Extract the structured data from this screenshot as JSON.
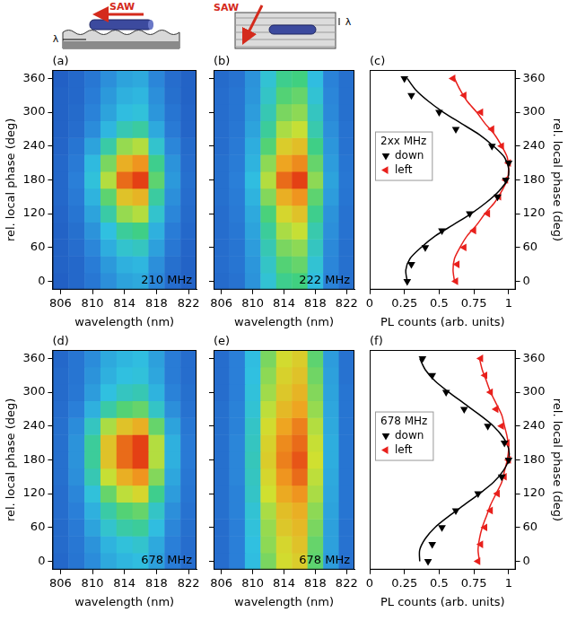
{
  "schematics": [
    {
      "arrow_label": "SAW",
      "period_label": "λ"
    },
    {
      "arrow_label": "SAW",
      "period_label": "λ"
    }
  ],
  "chart_data": [
    {
      "type": "heatmap",
      "panel_label": "(a)",
      "annotation": "210 MHz",
      "x_label": "wavelength (nm)",
      "y_label": "rel. local phase (deg)",
      "x": [
        806,
        808,
        810,
        812,
        814,
        816,
        818,
        820,
        822
      ],
      "y": [
        0,
        30,
        60,
        90,
        120,
        150,
        180,
        210,
        240,
        270,
        300,
        330,
        360
      ],
      "cells": [
        [
          0.13,
          0.16,
          0.22,
          0.3,
          0.36,
          0.38,
          0.27,
          0.18,
          0.14
        ],
        [
          0.14,
          0.16,
          0.24,
          0.33,
          0.4,
          0.42,
          0.3,
          0.19,
          0.14
        ],
        [
          0.14,
          0.18,
          0.27,
          0.39,
          0.48,
          0.5,
          0.35,
          0.22,
          0.15
        ],
        [
          0.14,
          0.19,
          0.31,
          0.45,
          0.56,
          0.59,
          0.4,
          0.24,
          0.16
        ],
        [
          0.15,
          0.21,
          0.36,
          0.54,
          0.69,
          0.72,
          0.48,
          0.27,
          0.17
        ],
        [
          0.16,
          0.23,
          0.41,
          0.63,
          0.81,
          0.84,
          0.55,
          0.3,
          0.18
        ],
        [
          0.16,
          0.25,
          0.46,
          0.72,
          0.93,
          0.97,
          0.63,
          0.33,
          0.19
        ],
        [
          0.16,
          0.23,
          0.43,
          0.66,
          0.85,
          0.89,
          0.58,
          0.31,
          0.18
        ],
        [
          0.15,
          0.21,
          0.36,
          0.54,
          0.69,
          0.72,
          0.48,
          0.27,
          0.17
        ],
        [
          0.14,
          0.18,
          0.29,
          0.42,
          0.52,
          0.55,
          0.38,
          0.23,
          0.15
        ],
        [
          0.14,
          0.17,
          0.26,
          0.36,
          0.44,
          0.46,
          0.32,
          0.21,
          0.15
        ],
        [
          0.14,
          0.16,
          0.24,
          0.33,
          0.4,
          0.42,
          0.3,
          0.19,
          0.14
        ],
        [
          0.13,
          0.16,
          0.22,
          0.3,
          0.36,
          0.38,
          0.27,
          0.18,
          0.14
        ]
      ],
      "zlim": [
        0,
        1
      ],
      "xlim": [
        805,
        823
      ],
      "ylim": [
        -15,
        375
      ],
      "xticks": [
        806,
        810,
        814,
        818,
        822
      ],
      "yticks": [
        0,
        60,
        120,
        180,
        240,
        300,
        360
      ],
      "grid": false
    },
    {
      "type": "heatmap",
      "panel_label": "(b)",
      "annotation": "222 MHz",
      "x_label": "wavelength (nm)",
      "x": [
        806,
        808,
        810,
        812,
        814,
        816,
        818,
        820,
        822
      ],
      "y": [
        0,
        30,
        60,
        90,
        120,
        150,
        180,
        210,
        240,
        270,
        300,
        330,
        360
      ],
      "cells": [
        [
          0.17,
          0.2,
          0.31,
          0.47,
          0.58,
          0.6,
          0.44,
          0.26,
          0.19
        ],
        [
          0.18,
          0.21,
          0.32,
          0.49,
          0.62,
          0.64,
          0.47,
          0.27,
          0.19
        ],
        [
          0.18,
          0.21,
          0.34,
          0.52,
          0.66,
          0.68,
          0.5,
          0.28,
          0.19
        ],
        [
          0.18,
          0.22,
          0.36,
          0.56,
          0.71,
          0.74,
          0.53,
          0.3,
          0.2
        ],
        [
          0.18,
          0.23,
          0.38,
          0.61,
          0.77,
          0.81,
          0.58,
          0.31,
          0.2
        ],
        [
          0.19,
          0.24,
          0.41,
          0.67,
          0.85,
          0.89,
          0.63,
          0.34,
          0.21
        ],
        [
          0.19,
          0.25,
          0.44,
          0.72,
          0.93,
          0.97,
          0.68,
          0.36,
          0.22
        ],
        [
          0.19,
          0.24,
          0.41,
          0.68,
          0.87,
          0.9,
          0.64,
          0.34,
          0.21
        ],
        [
          0.18,
          0.23,
          0.39,
          0.62,
          0.79,
          0.82,
          0.59,
          0.32,
          0.2
        ],
        [
          0.18,
          0.22,
          0.36,
          0.56,
          0.71,
          0.74,
          0.53,
          0.3,
          0.2
        ],
        [
          0.18,
          0.21,
          0.34,
          0.52,
          0.66,
          0.68,
          0.5,
          0.28,
          0.19
        ],
        [
          0.18,
          0.21,
          0.32,
          0.49,
          0.62,
          0.64,
          0.47,
          0.27,
          0.19
        ],
        [
          0.17,
          0.2,
          0.31,
          0.47,
          0.58,
          0.6,
          0.44,
          0.26,
          0.19
        ]
      ],
      "zlim": [
        0,
        1
      ],
      "xlim": [
        805,
        823
      ],
      "ylim": [
        -15,
        375
      ],
      "xticks": [
        806,
        810,
        814,
        818,
        822
      ],
      "yticks": [
        0,
        60,
        120,
        180,
        240,
        300,
        360
      ],
      "grid": false,
      "tick_labels": "x"
    },
    {
      "type": "scatter",
      "panel_label": "(c)",
      "x_label": "PL counts (arb. units)",
      "y_label": "rel. local phase (deg)",
      "legend_title": "2xx MHz",
      "legend": "left",
      "xlim": [
        0,
        1.05
      ],
      "ylim": [
        -15,
        375
      ],
      "xticks": [
        0,
        0.25,
        0.5,
        0.75,
        1
      ],
      "yticks": [
        0,
        60,
        120,
        180,
        240,
        300,
        360
      ],
      "grid": false,
      "series": [
        {
          "name": "down",
          "color": "#000000",
          "marker": "triangle-down",
          "x": [
            0.27,
            0.3,
            0.4,
            0.52,
            0.72,
            0.92,
            0.98,
            1.0,
            0.88,
            0.62,
            0.5,
            0.3,
            0.25
          ],
          "y": [
            0,
            30,
            60,
            90,
            120,
            150,
            180,
            210,
            240,
            270,
            300,
            330,
            360
          ]
        },
        {
          "name": "left",
          "color": "#e8201c",
          "marker": "triangle-left",
          "x": [
            0.62,
            0.63,
            0.68,
            0.75,
            0.85,
            0.93,
            0.98,
            1.0,
            0.95,
            0.88,
            0.8,
            0.68,
            0.6
          ],
          "y": [
            0,
            30,
            60,
            90,
            120,
            150,
            180,
            210,
            240,
            270,
            300,
            330,
            360
          ]
        },
        {
          "color": "#000000",
          "line_style": "solid",
          "x": [
            0.27,
            0.26,
            0.29,
            0.37,
            0.47,
            0.6,
            0.73,
            0.84,
            0.93,
            0.99,
            1.0,
            0.97,
            0.89,
            0.79,
            0.66,
            0.53,
            0.42,
            0.33,
            0.27
          ],
          "y": [
            0,
            20,
            40,
            60,
            80,
            100,
            120,
            140,
            160,
            180,
            200,
            220,
            240,
            260,
            280,
            300,
            320,
            340,
            360
          ]
        },
        {
          "color": "#e8201c",
          "line_style": "solid",
          "x": [
            0.61,
            0.6,
            0.61,
            0.65,
            0.7,
            0.77,
            0.83,
            0.9,
            0.95,
            0.99,
            1.0,
            0.99,
            0.95,
            0.9,
            0.83,
            0.77,
            0.7,
            0.65,
            0.61
          ],
          "y": [
            0,
            20,
            40,
            60,
            80,
            100,
            120,
            140,
            160,
            180,
            200,
            220,
            240,
            260,
            280,
            300,
            320,
            340,
            360
          ]
        }
      ]
    },
    {
      "type": "heatmap",
      "panel_label": "(d)",
      "annotation": "678 MHz",
      "x_label": "wavelength (nm)",
      "y_label": "rel. local phase (deg)",
      "x": [
        806,
        808,
        810,
        812,
        814,
        816,
        818,
        820,
        822
      ],
      "y": [
        0,
        30,
        60,
        90,
        120,
        150,
        180,
        210,
        240,
        270,
        300,
        330,
        360
      ],
      "cells": [
        [
          0.16,
          0.21,
          0.29,
          0.38,
          0.42,
          0.44,
          0.35,
          0.24,
          0.18
        ],
        [
          0.17,
          0.22,
          0.31,
          0.41,
          0.46,
          0.48,
          0.38,
          0.25,
          0.18
        ],
        [
          0.17,
          0.23,
          0.36,
          0.48,
          0.54,
          0.56,
          0.44,
          0.27,
          0.19
        ],
        [
          0.18,
          0.25,
          0.4,
          0.54,
          0.62,
          0.64,
          0.49,
          0.3,
          0.2
        ],
        [
          0.18,
          0.27,
          0.46,
          0.64,
          0.73,
          0.77,
          0.58,
          0.34,
          0.21
        ],
        [
          0.19,
          0.3,
          0.52,
          0.74,
          0.85,
          0.89,
          0.67,
          0.37,
          0.22
        ],
        [
          0.19,
          0.31,
          0.56,
          0.81,
          0.93,
          0.97,
          0.72,
          0.4,
          0.23
        ],
        [
          0.19,
          0.31,
          0.56,
          0.81,
          0.93,
          0.97,
          0.72,
          0.4,
          0.23
        ],
        [
          0.19,
          0.29,
          0.5,
          0.71,
          0.81,
          0.85,
          0.64,
          0.36,
          0.22
        ],
        [
          0.18,
          0.25,
          0.4,
          0.54,
          0.62,
          0.64,
          0.49,
          0.3,
          0.2
        ],
        [
          0.17,
          0.22,
          0.34,
          0.45,
          0.5,
          0.52,
          0.41,
          0.26,
          0.19
        ],
        [
          0.17,
          0.21,
          0.31,
          0.4,
          0.45,
          0.46,
          0.37,
          0.24,
          0.18
        ],
        [
          0.16,
          0.21,
          0.29,
          0.38,
          0.42,
          0.44,
          0.35,
          0.24,
          0.18
        ]
      ],
      "zlim": [
        0,
        1
      ],
      "xlim": [
        805,
        823
      ],
      "ylim": [
        -15,
        375
      ],
      "xticks": [
        806,
        810,
        814,
        818,
        822
      ],
      "yticks": [
        0,
        60,
        120,
        180,
        240,
        300,
        360
      ],
      "grid": false
    },
    {
      "type": "heatmap",
      "panel_label": "(e)",
      "annotation": "678 MHz",
      "x_label": "wavelength (nm)",
      "x": [
        806,
        808,
        810,
        812,
        814,
        816,
        818,
        820,
        822
      ],
      "y": [
        0,
        30,
        60,
        90,
        120,
        150,
        180,
        210,
        240,
        270,
        300,
        330,
        360
      ],
      "cells": [
        [
          0.18,
          0.25,
          0.44,
          0.66,
          0.76,
          0.79,
          0.63,
          0.34,
          0.2
        ],
        [
          0.18,
          0.25,
          0.45,
          0.68,
          0.77,
          0.81,
          0.64,
          0.35,
          0.2
        ],
        [
          0.18,
          0.25,
          0.46,
          0.69,
          0.8,
          0.83,
          0.66,
          0.35,
          0.2
        ],
        [
          0.19,
          0.26,
          0.47,
          0.71,
          0.82,
          0.85,
          0.68,
          0.36,
          0.21
        ],
        [
          0.19,
          0.26,
          0.49,
          0.75,
          0.86,
          0.89,
          0.71,
          0.37,
          0.21
        ],
        [
          0.19,
          0.27,
          0.5,
          0.77,
          0.89,
          0.93,
          0.73,
          0.38,
          0.21
        ],
        [
          0.19,
          0.27,
          0.51,
          0.79,
          0.91,
          0.95,
          0.75,
          0.39,
          0.21
        ],
        [
          0.19,
          0.27,
          0.5,
          0.78,
          0.9,
          0.93,
          0.74,
          0.39,
          0.21
        ],
        [
          0.19,
          0.26,
          0.49,
          0.76,
          0.87,
          0.91,
          0.72,
          0.38,
          0.21
        ],
        [
          0.19,
          0.26,
          0.47,
          0.73,
          0.83,
          0.87,
          0.69,
          0.37,
          0.21
        ],
        [
          0.18,
          0.25,
          0.46,
          0.7,
          0.8,
          0.84,
          0.67,
          0.36,
          0.21
        ],
        [
          0.18,
          0.25,
          0.45,
          0.68,
          0.78,
          0.81,
          0.65,
          0.35,
          0.2
        ],
        [
          0.18,
          0.25,
          0.44,
          0.66,
          0.76,
          0.79,
          0.63,
          0.34,
          0.2
        ]
      ],
      "zlim": [
        0,
        1
      ],
      "xlim": [
        805,
        823
      ],
      "ylim": [
        -15,
        375
      ],
      "xticks": [
        806,
        810,
        814,
        818,
        822
      ],
      "yticks": [
        0,
        60,
        120,
        180,
        240,
        300,
        360
      ],
      "grid": false,
      "tick_labels": "x"
    },
    {
      "type": "scatter",
      "panel_label": "(f)",
      "x_label": "PL counts (arb. units)",
      "y_label": "rel. local phase (deg)",
      "legend_title": "678 MHz",
      "legend": "left",
      "xlim": [
        0,
        1.05
      ],
      "ylim": [
        -15,
        375
      ],
      "xticks": [
        0,
        0.25,
        0.5,
        0.75,
        1
      ],
      "yticks": [
        0,
        60,
        120,
        180,
        240,
        300,
        360
      ],
      "grid": false,
      "series": [
        {
          "name": "down",
          "color": "#000000",
          "marker": "triangle-down",
          "x": [
            0.42,
            0.45,
            0.52,
            0.62,
            0.78,
            0.95,
            1.0,
            0.97,
            0.85,
            0.68,
            0.55,
            0.45,
            0.38
          ],
          "y": [
            0,
            30,
            60,
            90,
            120,
            150,
            180,
            210,
            240,
            270,
            300,
            330,
            360
          ]
        },
        {
          "name": "left",
          "color": "#e8201c",
          "marker": "triangle-left",
          "x": [
            0.78,
            0.8,
            0.83,
            0.87,
            0.92,
            0.97,
            1.0,
            0.99,
            0.95,
            0.91,
            0.87,
            0.83,
            0.8
          ],
          "y": [
            0,
            30,
            60,
            90,
            120,
            150,
            180,
            210,
            240,
            270,
            300,
            330,
            360
          ]
        },
        {
          "color": "#000000",
          "line_style": "solid",
          "x": [
            0.36,
            0.36,
            0.4,
            0.47,
            0.57,
            0.68,
            0.79,
            0.89,
            0.96,
            1.0,
            1.0,
            0.96,
            0.89,
            0.79,
            0.68,
            0.57,
            0.47,
            0.4,
            0.36
          ],
          "y": [
            0,
            20,
            40,
            60,
            80,
            100,
            120,
            140,
            160,
            180,
            200,
            220,
            240,
            260,
            280,
            300,
            320,
            340,
            360
          ]
        },
        {
          "color": "#e8201c",
          "line_style": "solid",
          "x": [
            0.79,
            0.78,
            0.79,
            0.81,
            0.84,
            0.87,
            0.91,
            0.95,
            0.97,
            0.99,
            1.0,
            0.99,
            0.97,
            0.95,
            0.91,
            0.87,
            0.84,
            0.81,
            0.79
          ],
          "y": [
            0,
            20,
            40,
            60,
            80,
            100,
            120,
            140,
            160,
            180,
            200,
            220,
            240,
            260,
            280,
            300,
            320,
            340,
            360
          ]
        }
      ]
    }
  ]
}
